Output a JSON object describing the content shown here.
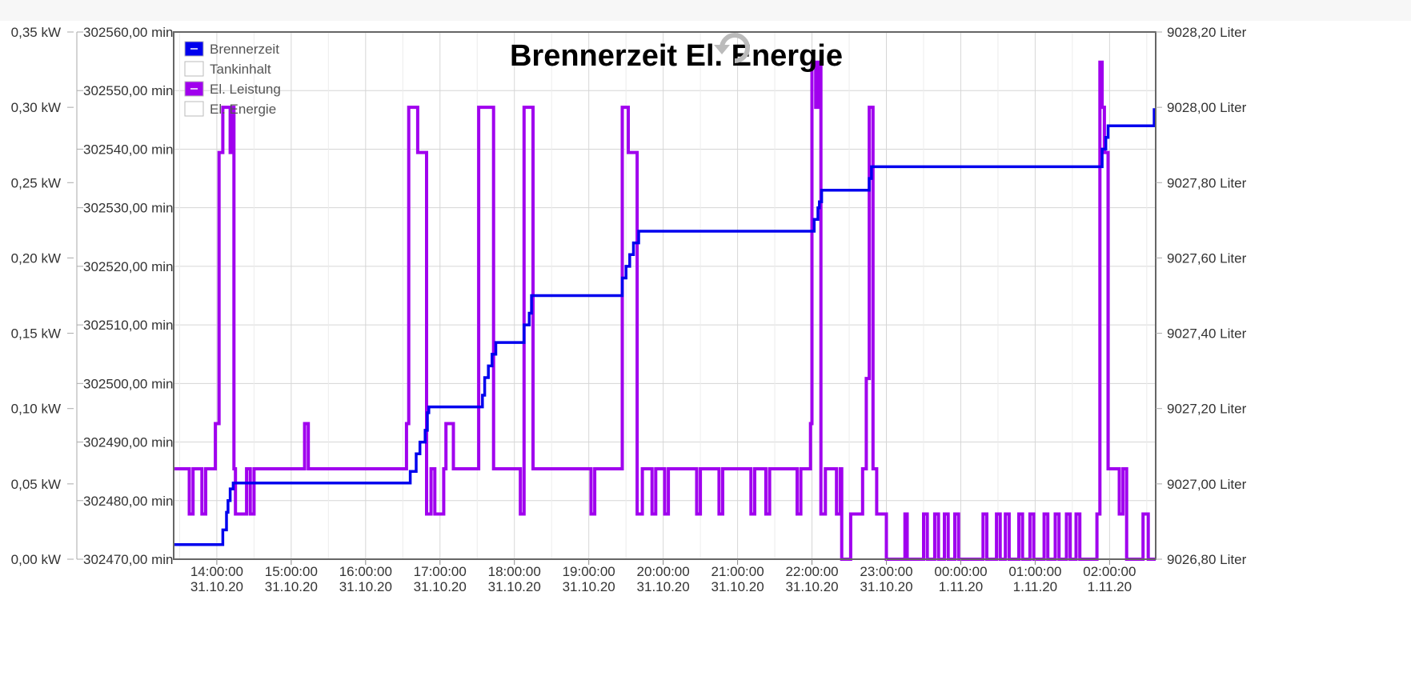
{
  "chart_data": {
    "type": "line",
    "title": "Brennerzeit El. Energie",
    "legend": {
      "placement": "top-left",
      "items": [
        {
          "name": "Brennerzeit",
          "color": "#0000ee",
          "checked": true
        },
        {
          "name": "Tankinhalt",
          "color": "#ffffff",
          "checked": false
        },
        {
          "name": "El. Leistung",
          "color": "#a000ee",
          "checked": true
        },
        {
          "name": "El. Energie",
          "color": "#ffffff",
          "checked": false
        }
      ]
    },
    "x_ticks": [
      {
        "time": "14:00:00",
        "date": "31.10.20"
      },
      {
        "time": "15:00:00",
        "date": "31.10.20"
      },
      {
        "time": "16:00:00",
        "date": "31.10.20"
      },
      {
        "time": "17:00:00",
        "date": "31.10.20"
      },
      {
        "time": "18:00:00",
        "date": "31.10.20"
      },
      {
        "time": "19:00:00",
        "date": "31.10.20"
      },
      {
        "time": "20:00:00",
        "date": "31.10.20"
      },
      {
        "time": "21:00:00",
        "date": "31.10.20"
      },
      {
        "time": "22:00:00",
        "date": "31.10.20"
      },
      {
        "time": "23:00:00",
        "date": "31.10.20"
      },
      {
        "time": "00:00:00",
        "date": "1.11.20"
      },
      {
        "time": "01:00:00",
        "date": "1.11.20"
      },
      {
        "time": "02:00:00",
        "date": "1.11.20"
      }
    ],
    "xlim_hours": [
      13.42,
      26.62
    ],
    "y_left_kw": {
      "ticks": [
        "0,00 kW",
        "0,05 kW",
        "0,10 kW",
        "0,15 kW",
        "0,20 kW",
        "0,25 kW",
        "0,30 kW",
        "0,35 kW"
      ],
      "ylim": [
        0,
        0.35
      ]
    },
    "y_left_min": {
      "ticks": [
        "302470,00 min",
        "302480,00 min",
        "302490,00 min",
        "302500,00 min",
        "302510,00 min",
        "302520,00 min",
        "302530,00 min",
        "302540,00 min",
        "302550,00 min",
        "302560,00 min"
      ],
      "ylim": [
        302470,
        302560
      ]
    },
    "y_right_liter": {
      "ticks": [
        "9026,80 Liter",
        "9027,00 Liter",
        "9027,20 Liter",
        "9027,40 Liter",
        "9027,60 Liter",
        "9027,80 Liter",
        "9028,00 Liter",
        "9028,20 Liter"
      ],
      "ylim": [
        9026.8,
        9028.2
      ]
    },
    "grid": true,
    "series": [
      {
        "name": "Brennerzeit",
        "axis": "min",
        "color": "#0000ee",
        "step": true,
        "points": [
          [
            13.42,
            302472.5
          ],
          [
            14.05,
            302472.5
          ],
          [
            14.08,
            302475
          ],
          [
            14.13,
            302478
          ],
          [
            14.15,
            302480
          ],
          [
            14.18,
            302482
          ],
          [
            14.22,
            302483
          ],
          [
            16.55,
            302483
          ],
          [
            16.6,
            302485
          ],
          [
            16.68,
            302488
          ],
          [
            16.73,
            302490
          ],
          [
            16.8,
            302492
          ],
          [
            16.83,
            302495
          ],
          [
            16.85,
            302496
          ],
          [
            17.52,
            302496
          ],
          [
            17.57,
            302498
          ],
          [
            17.6,
            302501
          ],
          [
            17.65,
            302503
          ],
          [
            17.7,
            302505
          ],
          [
            17.75,
            302507
          ],
          [
            18.08,
            302507
          ],
          [
            18.13,
            302510
          ],
          [
            18.2,
            302512
          ],
          [
            18.23,
            302515
          ],
          [
            19.42,
            302515
          ],
          [
            19.45,
            302518
          ],
          [
            19.5,
            302520
          ],
          [
            19.55,
            302522
          ],
          [
            19.6,
            302524
          ],
          [
            19.67,
            302526
          ],
          [
            21.98,
            302526
          ],
          [
            22.03,
            302528
          ],
          [
            22.08,
            302530
          ],
          [
            22.1,
            302531
          ],
          [
            22.13,
            302533
          ],
          [
            22.73,
            302533
          ],
          [
            22.77,
            302535
          ],
          [
            22.8,
            302537
          ],
          [
            25.85,
            302537
          ],
          [
            25.9,
            302540
          ],
          [
            25.95,
            302542
          ],
          [
            25.98,
            302544
          ],
          [
            26.55,
            302544
          ],
          [
            26.6,
            302547
          ]
        ]
      },
      {
        "name": "El. Leistung",
        "axis": "kw",
        "color": "#a000ee",
        "step": true,
        "points": [
          [
            13.42,
            0.06
          ],
          [
            13.63,
            0.06
          ],
          [
            13.63,
            0.03
          ],
          [
            13.68,
            0.03
          ],
          [
            13.68,
            0.06
          ],
          [
            13.8,
            0.06
          ],
          [
            13.8,
            0.03
          ],
          [
            13.85,
            0.03
          ],
          [
            13.85,
            0.06
          ],
          [
            13.98,
            0.06
          ],
          [
            13.98,
            0.09
          ],
          [
            14.03,
            0.09
          ],
          [
            14.03,
            0.27
          ],
          [
            14.08,
            0.27
          ],
          [
            14.08,
            0.3
          ],
          [
            14.18,
            0.3
          ],
          [
            14.18,
            0.27
          ],
          [
            14.2,
            0.27
          ],
          [
            14.2,
            0.3
          ],
          [
            14.23,
            0.3
          ],
          [
            14.23,
            0.06
          ],
          [
            14.25,
            0.06
          ],
          [
            14.25,
            0.03
          ],
          [
            14.4,
            0.03
          ],
          [
            14.4,
            0.06
          ],
          [
            14.45,
            0.06
          ],
          [
            14.45,
            0.03
          ],
          [
            14.5,
            0.03
          ],
          [
            14.5,
            0.06
          ],
          [
            15.18,
            0.06
          ],
          [
            15.18,
            0.09
          ],
          [
            15.23,
            0.09
          ],
          [
            15.23,
            0.06
          ],
          [
            16.55,
            0.06
          ],
          [
            16.55,
            0.09
          ],
          [
            16.58,
            0.09
          ],
          [
            16.58,
            0.3
          ],
          [
            16.7,
            0.3
          ],
          [
            16.7,
            0.27
          ],
          [
            16.82,
            0.27
          ],
          [
            16.82,
            0.03
          ],
          [
            16.88,
            0.03
          ],
          [
            16.88,
            0.06
          ],
          [
            16.93,
            0.06
          ],
          [
            16.93,
            0.03
          ],
          [
            17.05,
            0.03
          ],
          [
            17.05,
            0.06
          ],
          [
            17.08,
            0.06
          ],
          [
            17.08,
            0.09
          ],
          [
            17.18,
            0.09
          ],
          [
            17.18,
            0.06
          ],
          [
            17.52,
            0.06
          ],
          [
            17.52,
            0.3
          ],
          [
            17.72,
            0.3
          ],
          [
            17.72,
            0.06
          ],
          [
            18.08,
            0.06
          ],
          [
            18.08,
            0.03
          ],
          [
            18.13,
            0.03
          ],
          [
            18.13,
            0.3
          ],
          [
            18.25,
            0.3
          ],
          [
            18.25,
            0.06
          ],
          [
            19.03,
            0.06
          ],
          [
            19.03,
            0.03
          ],
          [
            19.08,
            0.03
          ],
          [
            19.08,
            0.06
          ],
          [
            19.45,
            0.06
          ],
          [
            19.45,
            0.3
          ],
          [
            19.53,
            0.3
          ],
          [
            19.53,
            0.27
          ],
          [
            19.65,
            0.27
          ],
          [
            19.65,
            0.03
          ],
          [
            19.72,
            0.03
          ],
          [
            19.72,
            0.06
          ],
          [
            19.85,
            0.06
          ],
          [
            19.85,
            0.03
          ],
          [
            19.9,
            0.03
          ],
          [
            19.9,
            0.06
          ],
          [
            20.02,
            0.06
          ],
          [
            20.02,
            0.03
          ],
          [
            20.07,
            0.03
          ],
          [
            20.07,
            0.06
          ],
          [
            20.45,
            0.06
          ],
          [
            20.45,
            0.03
          ],
          [
            20.5,
            0.03
          ],
          [
            20.5,
            0.06
          ],
          [
            20.75,
            0.06
          ],
          [
            20.75,
            0.03
          ],
          [
            20.8,
            0.03
          ],
          [
            20.8,
            0.06
          ],
          [
            21.18,
            0.06
          ],
          [
            21.18,
            0.03
          ],
          [
            21.23,
            0.03
          ],
          [
            21.23,
            0.06
          ],
          [
            21.38,
            0.06
          ],
          [
            21.38,
            0.03
          ],
          [
            21.43,
            0.03
          ],
          [
            21.43,
            0.06
          ],
          [
            21.8,
            0.06
          ],
          [
            21.8,
            0.03
          ],
          [
            21.85,
            0.03
          ],
          [
            21.85,
            0.06
          ],
          [
            21.98,
            0.06
          ],
          [
            21.98,
            0.09
          ],
          [
            22.0,
            0.09
          ],
          [
            22.0,
            0.33
          ],
          [
            22.05,
            0.33
          ],
          [
            22.05,
            0.3
          ],
          [
            22.08,
            0.3
          ],
          [
            22.08,
            0.33
          ],
          [
            22.12,
            0.33
          ],
          [
            22.12,
            0.03
          ],
          [
            22.18,
            0.03
          ],
          [
            22.18,
            0.06
          ],
          [
            22.33,
            0.06
          ],
          [
            22.33,
            0.03
          ],
          [
            22.38,
            0.03
          ],
          [
            22.38,
            0.06
          ],
          [
            22.4,
            0.06
          ],
          [
            22.4,
            0.0
          ],
          [
            22.52,
            0.0
          ],
          [
            22.52,
            0.03
          ],
          [
            22.68,
            0.03
          ],
          [
            22.68,
            0.06
          ],
          [
            22.73,
            0.06
          ],
          [
            22.73,
            0.12
          ],
          [
            22.77,
            0.12
          ],
          [
            22.77,
            0.3
          ],
          [
            22.82,
            0.3
          ],
          [
            22.82,
            0.06
          ],
          [
            22.87,
            0.06
          ],
          [
            22.87,
            0.03
          ],
          [
            23.0,
            0.03
          ],
          [
            23.0,
            0.0
          ],
          [
            23.25,
            0.0
          ],
          [
            23.25,
            0.03
          ],
          [
            23.28,
            0.03
          ],
          [
            23.28,
            0.0
          ],
          [
            23.5,
            0.0
          ],
          [
            23.5,
            0.03
          ],
          [
            23.55,
            0.03
          ],
          [
            23.55,
            0.0
          ],
          [
            23.65,
            0.0
          ],
          [
            23.65,
            0.03
          ],
          [
            23.7,
            0.03
          ],
          [
            23.7,
            0.0
          ],
          [
            23.78,
            0.0
          ],
          [
            23.78,
            0.03
          ],
          [
            23.83,
            0.03
          ],
          [
            23.83,
            0.0
          ],
          [
            23.92,
            0.0
          ],
          [
            23.92,
            0.03
          ],
          [
            23.97,
            0.03
          ],
          [
            23.97,
            0.0
          ],
          [
            24.3,
            0.0
          ],
          [
            24.3,
            0.03
          ],
          [
            24.35,
            0.03
          ],
          [
            24.35,
            0.0
          ],
          [
            24.48,
            0.0
          ],
          [
            24.48,
            0.03
          ],
          [
            24.53,
            0.03
          ],
          [
            24.53,
            0.0
          ],
          [
            24.6,
            0.0
          ],
          [
            24.6,
            0.03
          ],
          [
            24.65,
            0.03
          ],
          [
            24.65,
            0.0
          ],
          [
            24.78,
            0.0
          ],
          [
            24.78,
            0.03
          ],
          [
            24.83,
            0.03
          ],
          [
            24.83,
            0.0
          ],
          [
            24.93,
            0.0
          ],
          [
            24.93,
            0.03
          ],
          [
            24.98,
            0.03
          ],
          [
            24.98,
            0.0
          ],
          [
            25.12,
            0.0
          ],
          [
            25.12,
            0.03
          ],
          [
            25.17,
            0.03
          ],
          [
            25.17,
            0.0
          ],
          [
            25.27,
            0.0
          ],
          [
            25.27,
            0.03
          ],
          [
            25.32,
            0.03
          ],
          [
            25.32,
            0.0
          ],
          [
            25.42,
            0.0
          ],
          [
            25.42,
            0.03
          ],
          [
            25.47,
            0.03
          ],
          [
            25.47,
            0.0
          ],
          [
            25.55,
            0.0
          ],
          [
            25.55,
            0.03
          ],
          [
            25.6,
            0.03
          ],
          [
            25.6,
            0.0
          ],
          [
            25.83,
            0.0
          ],
          [
            25.83,
            0.03
          ],
          [
            25.87,
            0.03
          ],
          [
            25.87,
            0.33
          ],
          [
            25.9,
            0.33
          ],
          [
            25.9,
            0.3
          ],
          [
            25.93,
            0.3
          ],
          [
            25.93,
            0.27
          ],
          [
            25.98,
            0.27
          ],
          [
            25.98,
            0.06
          ],
          [
            26.13,
            0.06
          ],
          [
            26.13,
            0.03
          ],
          [
            26.18,
            0.03
          ],
          [
            26.18,
            0.06
          ],
          [
            26.23,
            0.06
          ],
          [
            26.23,
            0.0
          ],
          [
            26.45,
            0.0
          ],
          [
            26.45,
            0.03
          ],
          [
            26.52,
            0.03
          ],
          [
            26.52,
            0.0
          ],
          [
            26.62,
            0.0
          ]
        ]
      }
    ]
  }
}
